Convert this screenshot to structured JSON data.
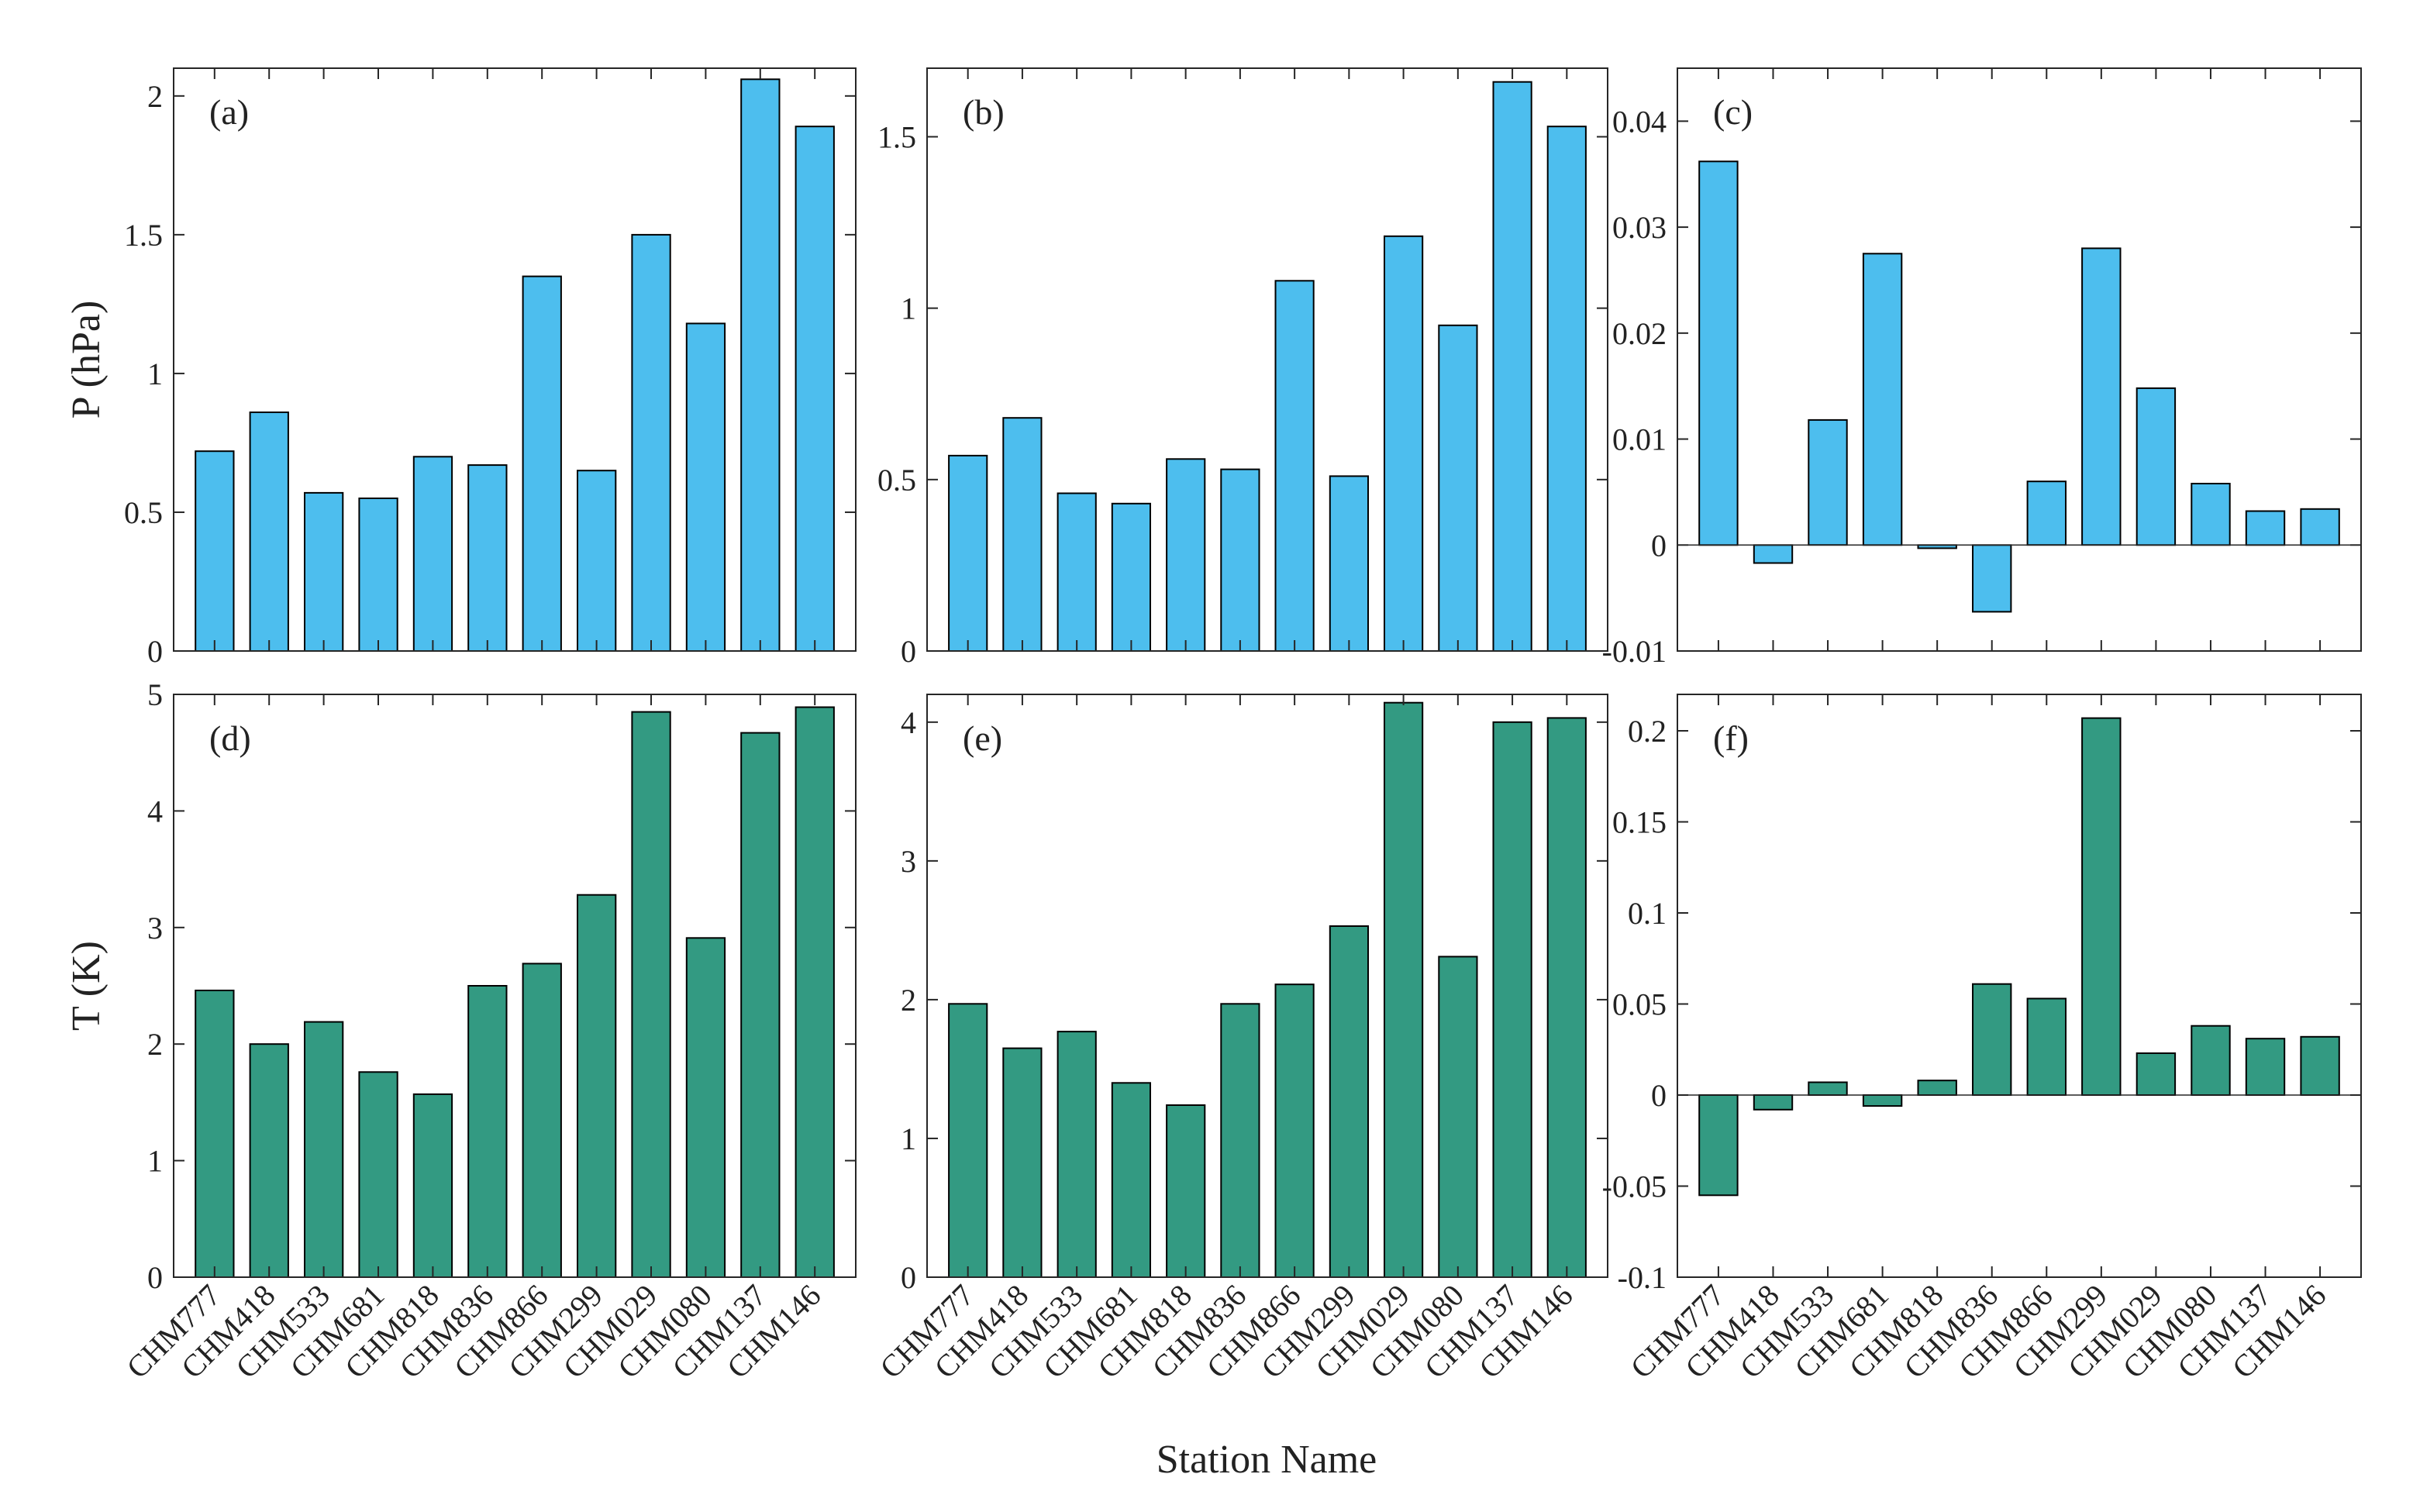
{
  "colors": {
    "pressure_bar": "#4DBEEE",
    "temperature_bar": "#339A82"
  },
  "figure": {
    "xlabel": "Station Name"
  },
  "chart_data": [
    {
      "panel": "(a)",
      "type": "bar",
      "row": 0,
      "col": 0,
      "ylabel": "P (hPa)",
      "ylim": [
        0,
        2.1
      ],
      "yticks": [
        0,
        0.5,
        1,
        1.5,
        2
      ],
      "ytick_labels": [
        "0",
        "0.5",
        "1",
        "1.5",
        "2"
      ],
      "categories": [
        "CHM777",
        "CHM418",
        "CHM533",
        "CHM681",
        "CHM818",
        "CHM836",
        "CHM866",
        "CHM299",
        "CHM029",
        "CHM080",
        "CHM137",
        "CHM146"
      ],
      "values": [
        0.72,
        0.86,
        0.57,
        0.55,
        0.7,
        0.67,
        1.35,
        0.65,
        1.5,
        1.18,
        2.06,
        1.89
      ],
      "color_key": "pressure_bar",
      "show_xticklabels": false
    },
    {
      "panel": "(b)",
      "type": "bar",
      "row": 0,
      "col": 1,
      "ylabel": "",
      "ylim": [
        0,
        1.7
      ],
      "yticks": [
        0,
        0.5,
        1,
        1.5
      ],
      "ytick_labels": [
        "0",
        "0.5",
        "1",
        "1.5"
      ],
      "categories": [
        "CHM777",
        "CHM418",
        "CHM533",
        "CHM681",
        "CHM818",
        "CHM836",
        "CHM866",
        "CHM299",
        "CHM029",
        "CHM080",
        "CHM137",
        "CHM146"
      ],
      "values": [
        0.57,
        0.68,
        0.46,
        0.43,
        0.56,
        0.53,
        1.08,
        0.51,
        1.21,
        0.95,
        1.66,
        1.53
      ],
      "color_key": "pressure_bar",
      "show_xticklabels": false
    },
    {
      "panel": "(c)",
      "type": "bar",
      "row": 0,
      "col": 2,
      "ylabel": "",
      "ylim": [
        -0.01,
        0.045
      ],
      "yticks": [
        -0.01,
        0,
        0.01,
        0.02,
        0.03,
        0.04
      ],
      "ytick_labels": [
        "-0.01",
        "0",
        "0.01",
        "0.02",
        "0.03",
        "0.04"
      ],
      "categories": [
        "CHM777",
        "CHM418",
        "CHM533",
        "CHM681",
        "CHM818",
        "CHM836",
        "CHM866",
        "CHM299",
        "CHM029",
        "CHM080",
        "CHM137",
        "CHM146"
      ],
      "values": [
        0.0362,
        -0.0017,
        0.0118,
        0.0275,
        -0.0003,
        -0.0063,
        0.006,
        0.028,
        0.0148,
        0.0058,
        0.0032,
        0.0034
      ],
      "color_key": "pressure_bar",
      "show_xticklabels": false
    },
    {
      "panel": "(d)",
      "type": "bar",
      "row": 1,
      "col": 0,
      "ylabel": "T (K)",
      "ylim": [
        0,
        5
      ],
      "yticks": [
        0,
        1,
        2,
        3,
        4,
        5
      ],
      "ytick_labels": [
        "0",
        "1",
        "2",
        "3",
        "4",
        "5"
      ],
      "categories": [
        "CHM777",
        "CHM418",
        "CHM533",
        "CHM681",
        "CHM818",
        "CHM836",
        "CHM866",
        "CHM299",
        "CHM029",
        "CHM080",
        "CHM137",
        "CHM146"
      ],
      "values": [
        2.46,
        2.0,
        2.19,
        1.76,
        1.57,
        2.5,
        2.69,
        3.28,
        4.85,
        2.91,
        4.67,
        4.89
      ],
      "color_key": "temperature_bar",
      "show_xticklabels": true
    },
    {
      "panel": "(e)",
      "type": "bar",
      "row": 1,
      "col": 1,
      "ylabel": "",
      "ylim": [
        0,
        4.2
      ],
      "yticks": [
        0,
        1,
        2,
        3,
        4
      ],
      "ytick_labels": [
        "0",
        "1",
        "2",
        "3",
        "4"
      ],
      "categories": [
        "CHM777",
        "CHM418",
        "CHM533",
        "CHM681",
        "CHM818",
        "CHM836",
        "CHM866",
        "CHM299",
        "CHM029",
        "CHM080",
        "CHM137",
        "CHM146"
      ],
      "values": [
        1.97,
        1.65,
        1.77,
        1.4,
        1.24,
        1.97,
        2.11,
        2.53,
        4.14,
        2.31,
        4.0,
        4.03
      ],
      "color_key": "temperature_bar",
      "show_xticklabels": true
    },
    {
      "panel": "(f)",
      "type": "bar",
      "row": 1,
      "col": 2,
      "ylabel": "",
      "ylim": [
        -0.1,
        0.22
      ],
      "yticks": [
        -0.1,
        -0.05,
        0,
        0.05,
        0.1,
        0.15,
        0.2
      ],
      "ytick_labels": [
        "-0.1",
        "-0.05",
        "0",
        "0.05",
        "0.1",
        "0.15",
        "0.2"
      ],
      "categories": [
        "CHM777",
        "CHM418",
        "CHM533",
        "CHM681",
        "CHM818",
        "CHM836",
        "CHM866",
        "CHM299",
        "CHM029",
        "CHM080",
        "CHM137",
        "CHM146"
      ],
      "values": [
        -0.055,
        -0.008,
        0.007,
        -0.006,
        0.008,
        0.061,
        0.053,
        0.207,
        0.023,
        0.038,
        0.031,
        0.032
      ],
      "color_key": "temperature_bar",
      "show_xticklabels": true
    }
  ]
}
